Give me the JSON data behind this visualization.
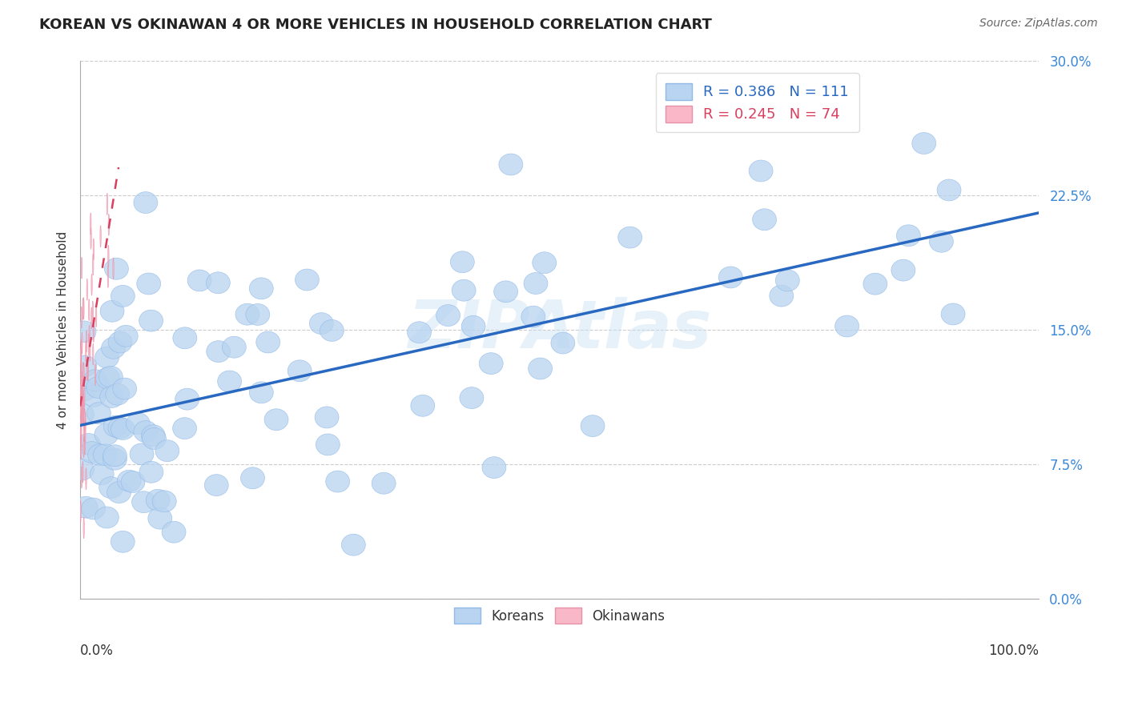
{
  "title": "KOREAN VS OKINAWAN 4 OR MORE VEHICLES IN HOUSEHOLD CORRELATION CHART",
  "source": "Source: ZipAtlas.com",
  "ylabel": "4 or more Vehicles in Household",
  "watermark": "ZIPAtlas",
  "korean_R": 0.386,
  "korean_N": 111,
  "okinawan_R": 0.245,
  "okinawan_N": 74,
  "korean_color": "#b8d4f0",
  "korean_edge_color": "#90b8e8",
  "korean_line_color": "#2868c0",
  "okinawan_color": "#f8b8c8",
  "okinawan_edge_color": "#e890a8",
  "okinawan_line_color": "#d84060",
  "ytick_color": "#3a88d8",
  "xlim": [
    0,
    100
  ],
  "ylim": [
    0,
    30
  ],
  "yticks": [
    0,
    7.5,
    15.0,
    22.5,
    30.0
  ],
  "grid_color": "#cccccc",
  "title_fontsize": 13,
  "source_fontsize": 10,
  "marker_size": 180,
  "korean_line_start_y": 10.0,
  "korean_line_end_y": 20.0,
  "okinawan_line_intercept": 10.5,
  "okinawan_line_slope": 3.5
}
